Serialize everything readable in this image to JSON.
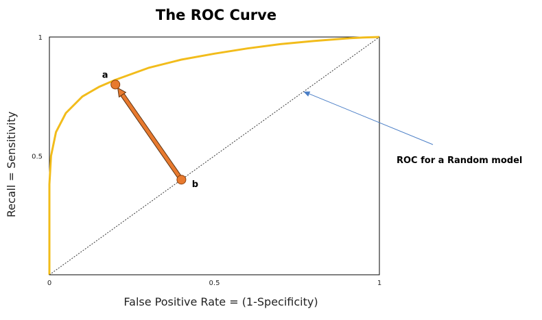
{
  "chart_data": {
    "type": "line",
    "title": "The ROC Curve",
    "xlabel": "False Positive Rate = (1-Specificity)",
    "ylabel": "Recall = Sensitivity",
    "xlim": [
      0,
      1
    ],
    "ylim": [
      0,
      1
    ],
    "grid": false,
    "x_ticks": [
      "0",
      "0.5",
      "1"
    ],
    "y_ticks": [
      "0.5",
      "1"
    ],
    "series": [
      {
        "color": "#f2bc1b",
        "x": [
          0,
          0.0,
          0.005,
          0.02,
          0.05,
          0.1,
          0.15,
          0.2,
          0.3,
          0.4,
          0.5,
          0.6,
          0.7,
          0.8,
          0.9,
          0.95,
          1.0
        ],
        "y": [
          0,
          0.38,
          0.5,
          0.6,
          0.68,
          0.75,
          0.79,
          0.82,
          0.87,
          0.905,
          0.93,
          0.952,
          0.97,
          0.983,
          0.994,
          0.998,
          1.0
        ]
      },
      {
        "color": "#333333",
        "dashed": true,
        "x": [
          0,
          1
        ],
        "y": [
          0,
          1
        ]
      }
    ],
    "points": [
      {
        "label": "a",
        "x": 0.2,
        "y": 0.8,
        "color": "#e87a2f"
      },
      {
        "label": "b",
        "x": 0.4,
        "y": 0.4,
        "color": "#e87a2f"
      }
    ],
    "annotations": [
      {
        "text": "ROC for a Random model",
        "target_x": 0.77,
        "target_y": 0.77,
        "color": "#4a7ec6"
      }
    ]
  }
}
